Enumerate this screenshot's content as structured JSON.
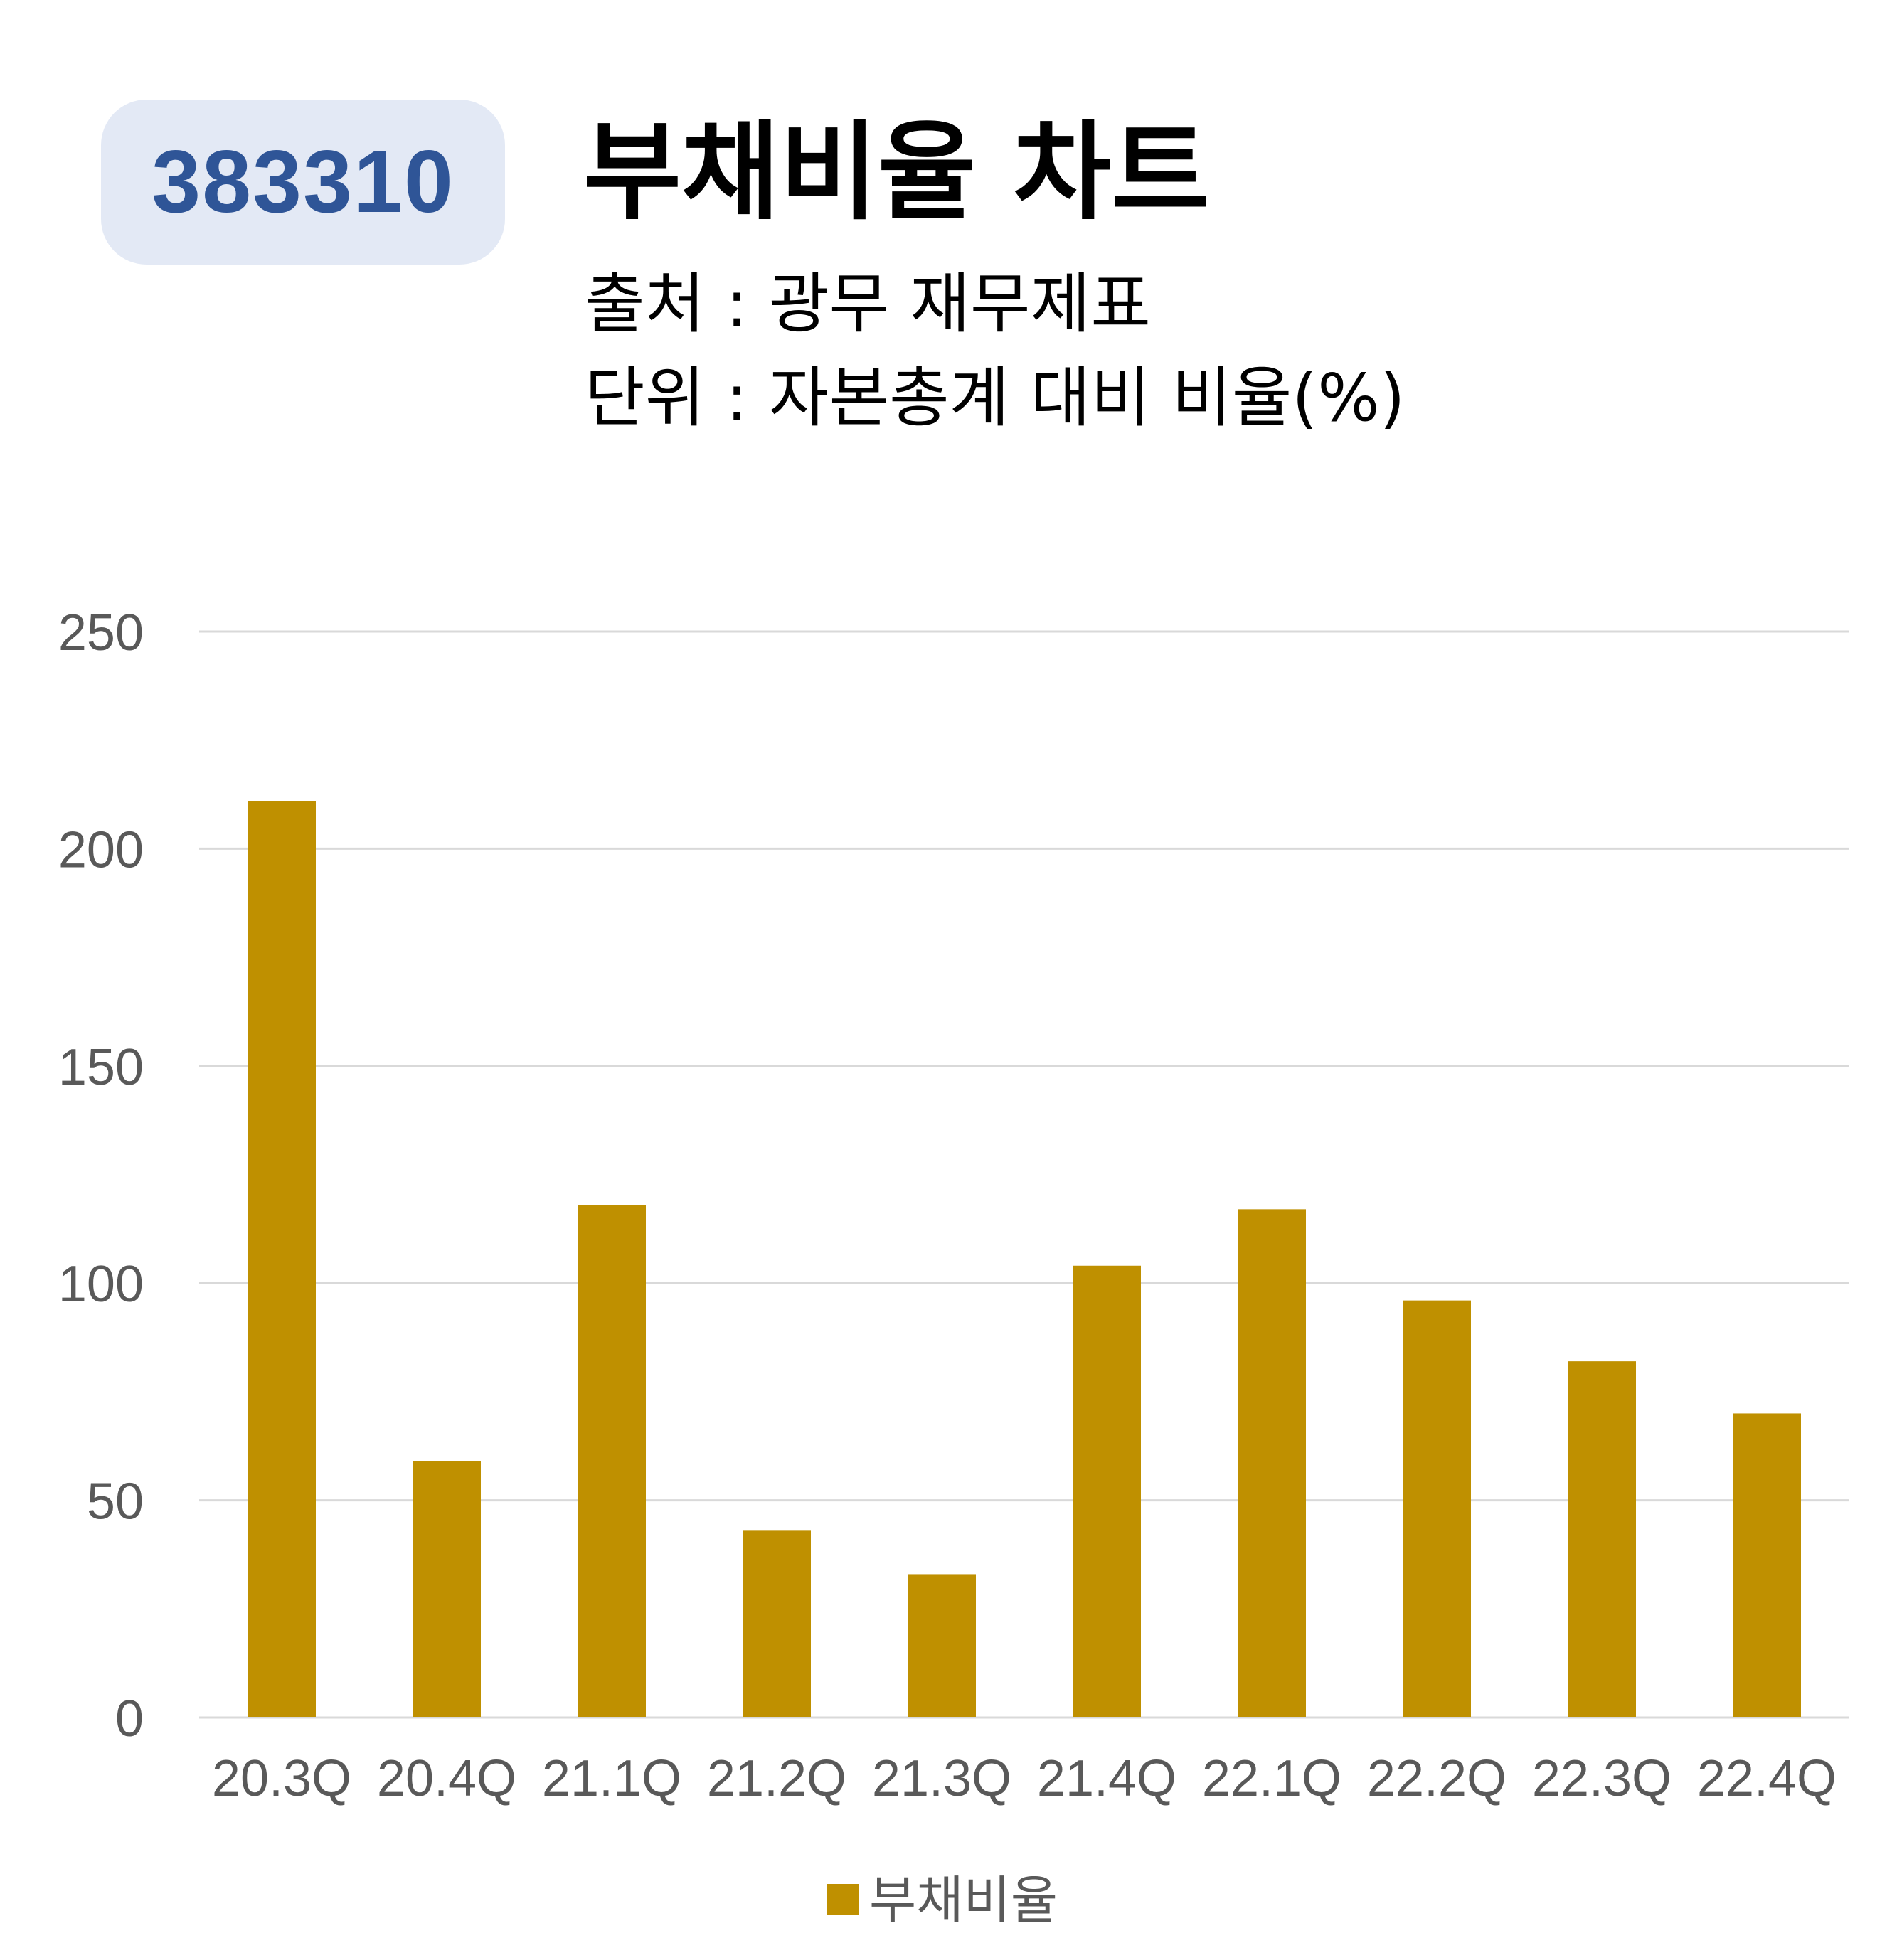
{
  "badge": "383310",
  "title": "부채비율 차트",
  "source_line": "출처 : 광무 재무제표",
  "unit_line": "단위 : 자본총계 대비 비율(%)",
  "chart_data": {
    "type": "bar",
    "categories": [
      "20.3Q",
      "20.4Q",
      "21.1Q",
      "21.2Q",
      "21.3Q",
      "21.4Q",
      "22.1Q",
      "22.2Q",
      "22.3Q",
      "22.4Q"
    ],
    "series": [
      {
        "name": "부채비율",
        "color": "#bf9000",
        "values": [
          211,
          59,
          118,
          43,
          33,
          104,
          117,
          96,
          82,
          70
        ]
      }
    ],
    "yticks": [
      0,
      50,
      100,
      150,
      200,
      250
    ],
    "ylim": [
      0,
      250
    ],
    "grid": true,
    "legend": "bottom"
  }
}
